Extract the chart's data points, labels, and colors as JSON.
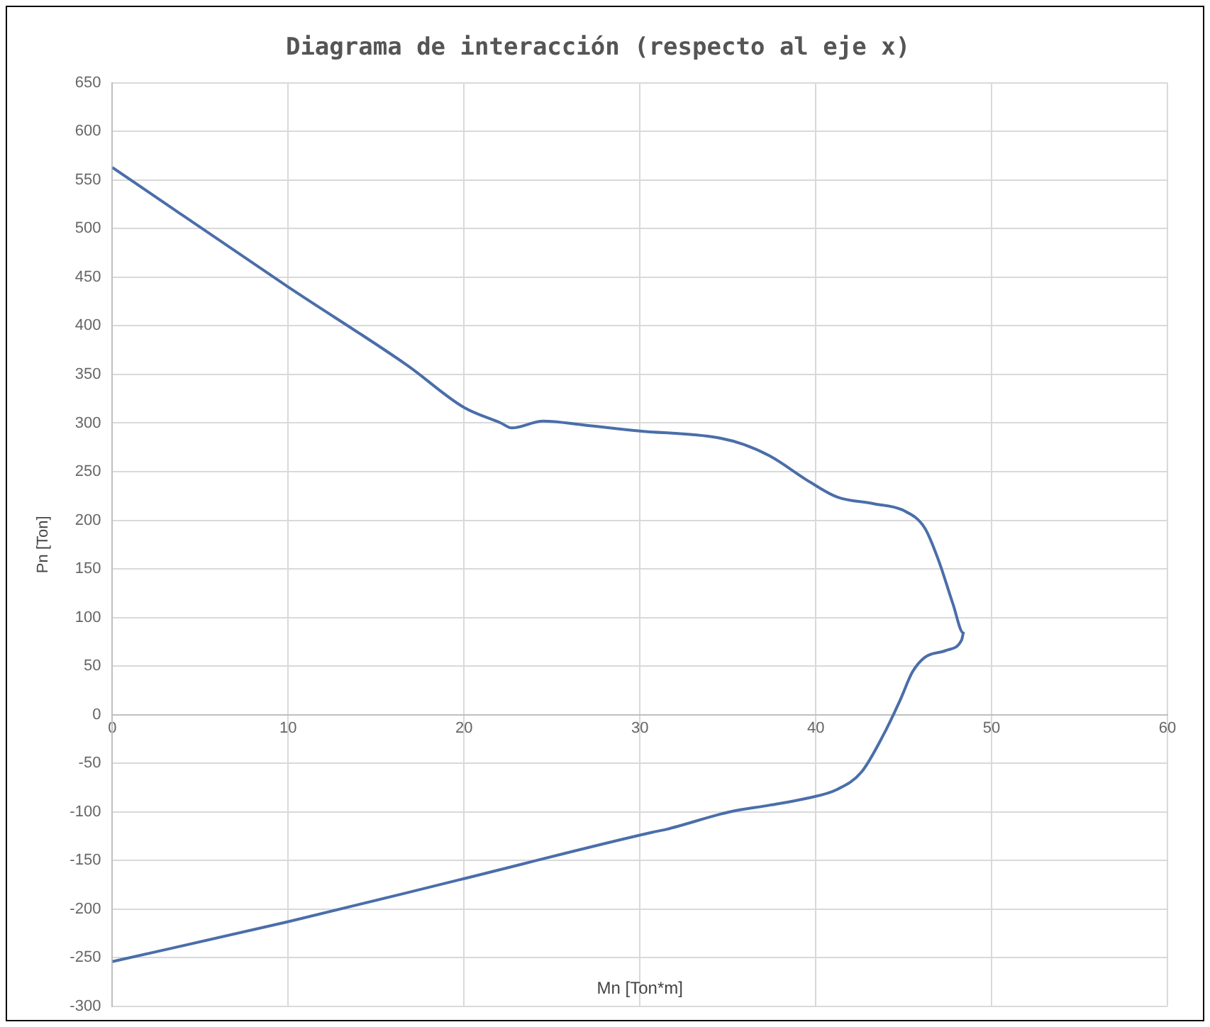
{
  "chart_data": {
    "type": "line",
    "title": "Diagrama de interacción (respecto al eje x)",
    "xlabel": "Mn [Ton*m]",
    "ylabel": "Pn [Ton]",
    "xlim": [
      0,
      60
    ],
    "xticks": [
      0,
      10,
      20,
      30,
      40,
      50,
      60
    ],
    "ylim": [
      -300,
      650
    ],
    "yticks": [
      -300,
      -250,
      -200,
      -150,
      -100,
      -50,
      0,
      50,
      100,
      150,
      200,
      250,
      300,
      350,
      400,
      450,
      500,
      550,
      600,
      650
    ],
    "grid": true,
    "legend": false,
    "marker": "none",
    "line_style": "solid",
    "series": [
      {
        "color": "#4a6ea9",
        "x": [
          0,
          10,
          16.8,
          20,
          22.1,
          22.7,
          24.5,
          26.8,
          29.9,
          34.4,
          35.9,
          37.4,
          39.7,
          41.2,
          43.3,
          45,
          46.2,
          47,
          47.8,
          48.4,
          48.3,
          47.4,
          46.2,
          45.5,
          44.8,
          43.9,
          42.6,
          41.2,
          39.5,
          37.4,
          35.1,
          31.5,
          30.7,
          19.7,
          10,
          0
        ],
        "values": [
          563,
          440,
          359,
          316,
          300,
          295,
          302,
          298,
          292,
          285,
          278,
          266,
          239,
          224,
          217,
          210,
          192,
          158,
          114,
          84,
          77,
          66,
          59,
          44,
          15,
          -19,
          -59,
          -77,
          -86,
          -93,
          -100,
          -118,
          -121,
          -170,
          -213,
          -254
        ]
      }
    ]
  }
}
